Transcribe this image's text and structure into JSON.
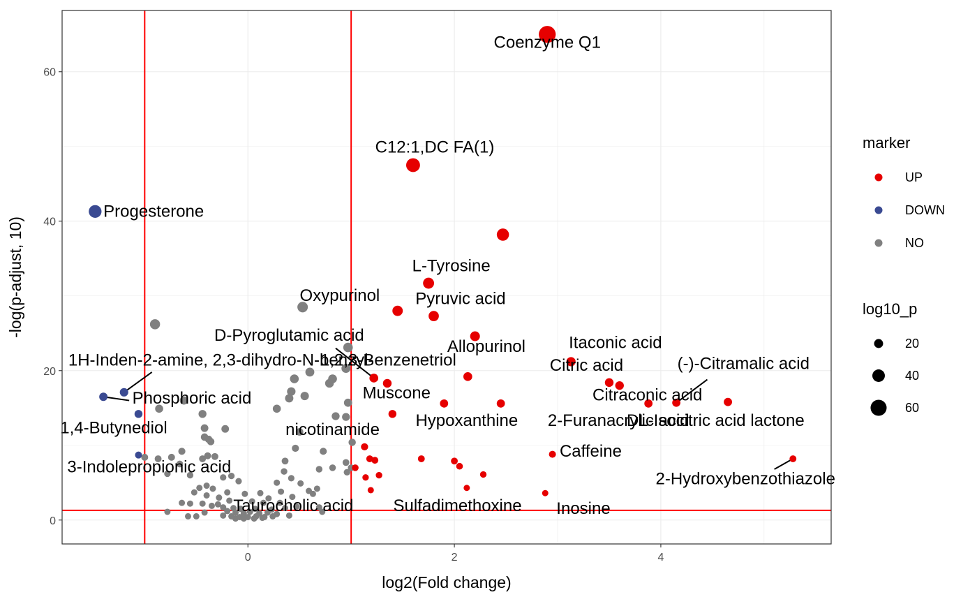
{
  "chart_data": {
    "type": "scatter",
    "xlabel": "log2(Fold change)",
    "ylabel": "-log(p-adjust, 10)",
    "xlim": [
      -1.8,
      5.65
    ],
    "ylim": [
      -3.2,
      68.2
    ],
    "x_ticks": [
      0,
      2,
      4
    ],
    "y_ticks": [
      0,
      20,
      40,
      60
    ],
    "grid": true,
    "thresholds": {
      "vlines": [
        -1,
        1
      ],
      "hline": 1.3,
      "color": "#ff0000"
    },
    "legend": {
      "position": "right",
      "color_title": "marker",
      "groups": [
        {
          "name": "UP",
          "color": "#e60000"
        },
        {
          "name": "DOWN",
          "color": "#3a4a92"
        },
        {
          "name": "NO",
          "color": "#808080"
        }
      ],
      "size_title": "log10_p",
      "sizes": [
        20,
        40,
        60
      ]
    },
    "points": [
      {
        "x": 2.9,
        "y": 65.0,
        "g": "UP"
      },
      {
        "x": 1.6,
        "y": 47.5,
        "g": "UP"
      },
      {
        "x": 2.47,
        "y": 38.2,
        "g": "UP"
      },
      {
        "x": 1.75,
        "y": 31.7,
        "g": "UP"
      },
      {
        "x": 1.45,
        "y": 28.0,
        "g": "UP"
      },
      {
        "x": 1.8,
        "y": 27.3,
        "g": "UP"
      },
      {
        "x": 2.2,
        "y": 24.6,
        "g": "UP"
      },
      {
        "x": 3.13,
        "y": 21.2,
        "g": "UP"
      },
      {
        "x": 1.22,
        "y": 19.0,
        "g": "UP"
      },
      {
        "x": 1.35,
        "y": 18.3,
        "g": "UP"
      },
      {
        "x": 2.13,
        "y": 19.2,
        "g": "UP"
      },
      {
        "x": 3.5,
        "y": 18.4,
        "g": "UP"
      },
      {
        "x": 3.6,
        "y": 18.0,
        "g": "UP"
      },
      {
        "x": 1.9,
        "y": 15.6,
        "g": "UP"
      },
      {
        "x": 2.45,
        "y": 15.6,
        "g": "UP"
      },
      {
        "x": 3.88,
        "y": 15.6,
        "g": "UP"
      },
      {
        "x": 4.15,
        "y": 15.7,
        "g": "UP"
      },
      {
        "x": 4.65,
        "y": 15.8,
        "g": "UP"
      },
      {
        "x": 1.4,
        "y": 14.2,
        "g": "UP"
      },
      {
        "x": 1.13,
        "y": 9.8,
        "g": "UP"
      },
      {
        "x": 1.18,
        "y": 8.2,
        "g": "UP"
      },
      {
        "x": 1.23,
        "y": 8.0,
        "g": "UP"
      },
      {
        "x": 1.68,
        "y": 8.2,
        "g": "UP"
      },
      {
        "x": 2.95,
        "y": 8.8,
        "g": "UP"
      },
      {
        "x": 2.0,
        "y": 7.9,
        "g": "UP"
      },
      {
        "x": 2.05,
        "y": 7.2,
        "g": "UP"
      },
      {
        "x": 1.04,
        "y": 7.0,
        "g": "UP"
      },
      {
        "x": 1.27,
        "y": 6.0,
        "g": "UP"
      },
      {
        "x": 2.28,
        "y": 6.1,
        "g": "UP"
      },
      {
        "x": 1.14,
        "y": 5.7,
        "g": "UP"
      },
      {
        "x": 1.19,
        "y": 4.0,
        "g": "UP"
      },
      {
        "x": 2.12,
        "y": 4.3,
        "g": "UP"
      },
      {
        "x": 2.88,
        "y": 3.6,
        "g": "UP"
      },
      {
        "x": 5.28,
        "y": 8.2,
        "g": "UP"
      },
      {
        "x": -1.48,
        "y": 41.3,
        "g": "DOWN"
      },
      {
        "x": -1.2,
        "y": 17.1,
        "g": "DOWN"
      },
      {
        "x": -1.4,
        "y": 16.5,
        "g": "DOWN"
      },
      {
        "x": -1.06,
        "y": 14.2,
        "g": "DOWN"
      },
      {
        "x": -1.06,
        "y": 8.7,
        "g": "DOWN"
      },
      {
        "x": 0.53,
        "y": 28.5,
        "g": "NO"
      },
      {
        "x": -0.9,
        "y": 26.2,
        "g": "NO"
      },
      {
        "x": 0.97,
        "y": 23.1,
        "g": "NO"
      },
      {
        "x": 0.95,
        "y": 20.3,
        "g": "NO"
      },
      {
        "x": 0.6,
        "y": 19.8,
        "g": "NO"
      },
      {
        "x": 0.45,
        "y": 18.9,
        "g": "NO"
      },
      {
        "x": 0.82,
        "y": 18.9,
        "g": "NO"
      },
      {
        "x": 0.79,
        "y": 18.3,
        "g": "NO"
      },
      {
        "x": 0.42,
        "y": 17.2,
        "g": "NO"
      },
      {
        "x": 0.4,
        "y": 16.3,
        "g": "NO"
      },
      {
        "x": 0.55,
        "y": 16.6,
        "g": "NO"
      },
      {
        "x": -0.62,
        "y": 16.0,
        "g": "NO"
      },
      {
        "x": 0.97,
        "y": 15.7,
        "g": "NO"
      },
      {
        "x": -0.86,
        "y": 14.9,
        "g": "NO"
      },
      {
        "x": 0.28,
        "y": 14.9,
        "g": "NO"
      },
      {
        "x": -0.44,
        "y": 14.2,
        "g": "NO"
      },
      {
        "x": 0.85,
        "y": 13.9,
        "g": "NO"
      },
      {
        "x": 0.95,
        "y": 13.8,
        "g": "NO"
      },
      {
        "x": -0.42,
        "y": 12.3,
        "g": "NO"
      },
      {
        "x": -0.22,
        "y": 12.2,
        "g": "NO"
      },
      {
        "x": 0.5,
        "y": 11.8,
        "g": "NO"
      },
      {
        "x": -0.42,
        "y": 11.1,
        "g": "NO"
      },
      {
        "x": -0.38,
        "y": 10.8,
        "g": "NO"
      },
      {
        "x": -0.36,
        "y": 10.5,
        "g": "NO"
      },
      {
        "x": 1.01,
        "y": 10.4,
        "g": "NO"
      },
      {
        "x": 0.46,
        "y": 9.6,
        "g": "NO"
      },
      {
        "x": -0.64,
        "y": 9.2,
        "g": "NO"
      },
      {
        "x": 0.73,
        "y": 9.2,
        "g": "NO"
      },
      {
        "x": -0.39,
        "y": 8.6,
        "g": "NO"
      },
      {
        "x": -0.32,
        "y": 8.5,
        "g": "NO"
      },
      {
        "x": -1.0,
        "y": 8.4,
        "g": "NO"
      },
      {
        "x": -0.74,
        "y": 8.4,
        "g": "NO"
      },
      {
        "x": -0.44,
        "y": 8.2,
        "g": "NO"
      },
      {
        "x": -0.66,
        "y": 7.5,
        "g": "NO"
      },
      {
        "x": -0.87,
        "y": 8.2,
        "g": "NO"
      },
      {
        "x": 0.36,
        "y": 7.9,
        "g": "NO"
      },
      {
        "x": 0.95,
        "y": 7.7,
        "g": "NO"
      },
      {
        "x": 1.0,
        "y": 7.0,
        "g": "NO"
      },
      {
        "x": 0.82,
        "y": 7.0,
        "g": "NO"
      },
      {
        "x": 0.69,
        "y": 6.8,
        "g": "NO"
      },
      {
        "x": 0.35,
        "y": 6.5,
        "g": "NO"
      },
      {
        "x": 0.96,
        "y": 6.4,
        "g": "NO"
      },
      {
        "x": -0.78,
        "y": 6.2,
        "g": "NO"
      },
      {
        "x": -0.56,
        "y": 6.0,
        "g": "NO"
      },
      {
        "x": 0.42,
        "y": 5.6,
        "g": "NO"
      },
      {
        "x": -0.24,
        "y": 5.7,
        "g": "NO"
      },
      {
        "x": -0.16,
        "y": 5.9,
        "g": "NO"
      },
      {
        "x": -0.09,
        "y": 5.2,
        "g": "NO"
      },
      {
        "x": 0.28,
        "y": 5.0,
        "g": "NO"
      },
      {
        "x": 0.51,
        "y": 4.9,
        "g": "NO"
      },
      {
        "x": -0.4,
        "y": 4.6,
        "g": "NO"
      },
      {
        "x": -0.47,
        "y": 4.3,
        "g": "NO"
      },
      {
        "x": -0.34,
        "y": 4.2,
        "g": "NO"
      },
      {
        "x": 0.67,
        "y": 4.2,
        "g": "NO"
      },
      {
        "x": 0.59,
        "y": 3.9,
        "g": "NO"
      },
      {
        "x": 0.32,
        "y": 3.8,
        "g": "NO"
      },
      {
        "x": -0.52,
        "y": 3.7,
        "g": "NO"
      },
      {
        "x": -0.2,
        "y": 3.7,
        "g": "NO"
      },
      {
        "x": -0.03,
        "y": 3.5,
        "g": "NO"
      },
      {
        "x": 0.12,
        "y": 3.6,
        "g": "NO"
      },
      {
        "x": -0.4,
        "y": 3.3,
        "g": "NO"
      },
      {
        "x": 0.43,
        "y": 3.1,
        "g": "NO"
      },
      {
        "x": 0.63,
        "y": 3.5,
        "g": "NO"
      },
      {
        "x": -0.28,
        "y": 3.0,
        "g": "NO"
      },
      {
        "x": 0.2,
        "y": 2.9,
        "g": "NO"
      },
      {
        "x": -0.18,
        "y": 2.6,
        "g": "NO"
      },
      {
        "x": 0.04,
        "y": 2.5,
        "g": "NO"
      },
      {
        "x": -0.64,
        "y": 2.3,
        "g": "NO"
      },
      {
        "x": -0.56,
        "y": 2.2,
        "g": "NO"
      },
      {
        "x": -0.44,
        "y": 2.2,
        "g": "NO"
      },
      {
        "x": 0.15,
        "y": 2.3,
        "g": "NO"
      },
      {
        "x": 0.31,
        "y": 2.3,
        "g": "NO"
      },
      {
        "x": -0.29,
        "y": 2.1,
        "g": "NO"
      },
      {
        "x": -0.35,
        "y": 1.9,
        "g": "NO"
      },
      {
        "x": -0.24,
        "y": 1.7,
        "g": "NO"
      },
      {
        "x": 0.47,
        "y": 1.8,
        "g": "NO"
      },
      {
        "x": 0.69,
        "y": 1.7,
        "g": "NO"
      },
      {
        "x": -0.14,
        "y": 1.6,
        "g": "NO"
      },
      {
        "x": -0.07,
        "y": 1.5,
        "g": "NO"
      },
      {
        "x": 0.07,
        "y": 1.5,
        "g": "NO"
      },
      {
        "x": 0.23,
        "y": 1.4,
        "g": "NO"
      },
      {
        "x": 0.36,
        "y": 1.6,
        "g": "NO"
      },
      {
        "x": -0.78,
        "y": 1.1,
        "g": "NO"
      },
      {
        "x": 0.72,
        "y": 1.1,
        "g": "NO"
      },
      {
        "x": -0.42,
        "y": 1.0,
        "g": "NO"
      },
      {
        "x": -0.2,
        "y": 1.2,
        "g": "NO"
      },
      {
        "x": -0.12,
        "y": 1.0,
        "g": "NO"
      },
      {
        "x": -0.04,
        "y": 0.9,
        "g": "NO"
      },
      {
        "x": 0.02,
        "y": 1.1,
        "g": "NO"
      },
      {
        "x": 0.11,
        "y": 0.9,
        "g": "NO"
      },
      {
        "x": 0.19,
        "y": 1.0,
        "g": "NO"
      },
      {
        "x": 0.28,
        "y": 0.8,
        "g": "NO"
      },
      {
        "x": -0.58,
        "y": 0.5,
        "g": "NO"
      },
      {
        "x": -0.5,
        "y": 0.5,
        "g": "NO"
      },
      {
        "x": -0.24,
        "y": 0.6,
        "g": "NO"
      },
      {
        "x": -0.16,
        "y": 0.5,
        "g": "NO"
      },
      {
        "x": -0.08,
        "y": 0.4,
        "g": "NO"
      },
      {
        "x": 0.0,
        "y": 0.4,
        "g": "NO"
      },
      {
        "x": 0.08,
        "y": 0.5,
        "g": "NO"
      },
      {
        "x": 0.16,
        "y": 0.4,
        "g": "NO"
      },
      {
        "x": 0.24,
        "y": 0.5,
        "g": "NO"
      },
      {
        "x": 0.4,
        "y": 0.6,
        "g": "NO"
      },
      {
        "x": -0.04,
        "y": 0.2,
        "g": "NO"
      },
      {
        "x": 0.06,
        "y": 0.2,
        "g": "NO"
      },
      {
        "x": 0.14,
        "y": 0.3,
        "g": "NO"
      },
      {
        "x": -0.12,
        "y": 0.2,
        "g": "NO"
      }
    ],
    "labels": [
      {
        "text": "Coenzyme Q1",
        "x": 2.9,
        "y": 63.2,
        "anchor": "middle"
      },
      {
        "text": "C12:1,DC FA(1)",
        "x": 1.81,
        "y": 49.2,
        "anchor": "middle"
      },
      {
        "text": "Progesterone",
        "x": -1.4,
        "y": 40.6,
        "anchor": "start"
      },
      {
        "text": "L-Tyrosine",
        "x": 1.97,
        "y": 33.3,
        "anchor": "middle"
      },
      {
        "text": "Oxypurinol",
        "x": 0.89,
        "y": 29.3,
        "anchor": "middle"
      },
      {
        "text": "Pyruvic acid",
        "x": 2.06,
        "y": 28.9,
        "anchor": "middle"
      },
      {
        "text": "D-Pyroglutamic acid",
        "x": 0.4,
        "y": 24.0,
        "anchor": "middle"
      },
      {
        "text": "Allopurinol",
        "x": 2.31,
        "y": 22.5,
        "anchor": "middle"
      },
      {
        "text": "Itaconic acid",
        "x": 3.56,
        "y": 23.0,
        "anchor": "middle"
      },
      {
        "text": "1H-Inden-2-amine, 2,3-dihydro-N-benzyl-",
        "x": -1.74,
        "y": 20.7,
        "anchor": "start"
      },
      {
        "text": "1,2,3-Benzenetriol",
        "x": 1.36,
        "y": 20.7,
        "anchor": "middle"
      },
      {
        "text": "Citric acid",
        "x": 3.28,
        "y": 20.0,
        "anchor": "middle"
      },
      {
        "text": "(-)-Citramalic acid",
        "x": 4.8,
        "y": 20.2,
        "anchor": "middle"
      },
      {
        "text": "Muscone",
        "x": 1.44,
        "y": 16.3,
        "anchor": "middle"
      },
      {
        "text": "Citraconic acid",
        "x": 3.87,
        "y": 16.0,
        "anchor": "middle"
      },
      {
        "text": "Phosphoric acid",
        "x": -1.12,
        "y": 15.6,
        "anchor": "start"
      },
      {
        "text": "Hypoxanthine",
        "x": 2.12,
        "y": 12.6,
        "anchor": "middle"
      },
      {
        "text": "2-Furanacrylic acid",
        "x": 3.59,
        "y": 12.6,
        "anchor": "middle"
      },
      {
        "text": "DL-Isocitric acid lactone",
        "x": 4.53,
        "y": 12.6,
        "anchor": "middle"
      },
      {
        "text": "1,4-Butynediol",
        "x": -1.3,
        "y": 11.6,
        "anchor": "middle"
      },
      {
        "text": "nicotinamide",
        "x": 0.82,
        "y": 11.4,
        "anchor": "middle"
      },
      {
        "text": "Caffeine",
        "x": 3.02,
        "y": 8.5,
        "anchor": "start"
      },
      {
        "text": "3-Indolepropionic acid",
        "x": -1.75,
        "y": 6.4,
        "anchor": "start"
      },
      {
        "text": "2-Hydroxybenzothiazole",
        "x": 4.82,
        "y": 4.8,
        "anchor": "middle"
      },
      {
        "text": "Taurocholic acid",
        "x": 0.44,
        "y": 1.2,
        "anchor": "middle"
      },
      {
        "text": "Sulfadimethoxine",
        "x": 2.03,
        "y": 1.2,
        "anchor": "middle"
      },
      {
        "text": "Inosine",
        "x": 3.25,
        "y": 0.8,
        "anchor": "middle"
      }
    ],
    "connectors": [
      {
        "x1": -1.2,
        "y1": 17.1,
        "x2": -0.93,
        "y2": 19.8
      },
      {
        "x1": -1.4,
        "y1": 16.5,
        "x2": -1.15,
        "y2": 16.0
      },
      {
        "x1": 1.22,
        "y1": 19.0,
        "x2": 0.85,
        "y2": 23.0
      },
      {
        "x1": 4.15,
        "y1": 15.7,
        "x2": 4.45,
        "y2": 18.8
      },
      {
        "x1": 5.28,
        "y1": 8.2,
        "x2": 5.1,
        "y2": 6.8
      }
    ]
  }
}
